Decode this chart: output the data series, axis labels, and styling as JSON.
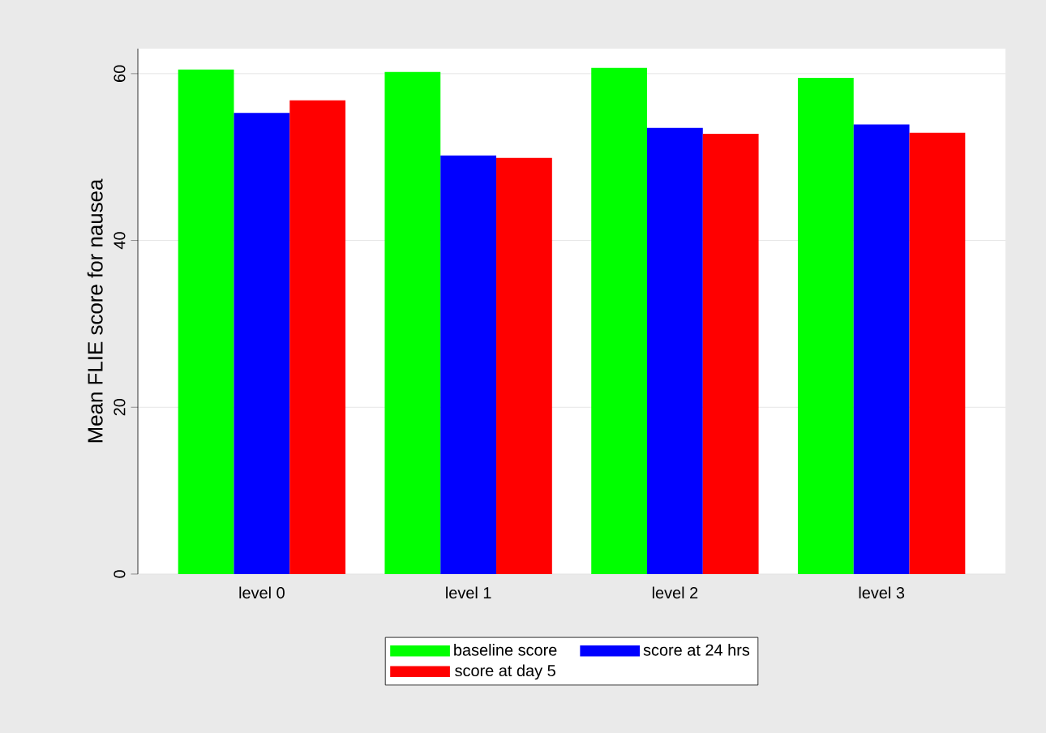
{
  "chart_data": {
    "type": "bar",
    "ylabel": "Mean FLIE score for nausea",
    "categories": [
      "level 0",
      "level  1",
      "level 2",
      "level 3"
    ],
    "series": [
      {
        "name": "baseline score",
        "color": "#00ff00",
        "values": [
          60.5,
          60.2,
          60.7,
          59.5
        ]
      },
      {
        "name": "score at 24 hrs",
        "color": "#0000ff",
        "values": [
          55.3,
          50.2,
          53.5,
          53.9
        ]
      },
      {
        "name": "score at day 5",
        "color": "#ff0000",
        "values": [
          56.8,
          49.9,
          52.8,
          52.9
        ]
      }
    ],
    "ylim": [
      0,
      63
    ],
    "yticks": [
      0,
      20,
      40,
      60
    ],
    "grid": "y",
    "legend": "bottom"
  }
}
